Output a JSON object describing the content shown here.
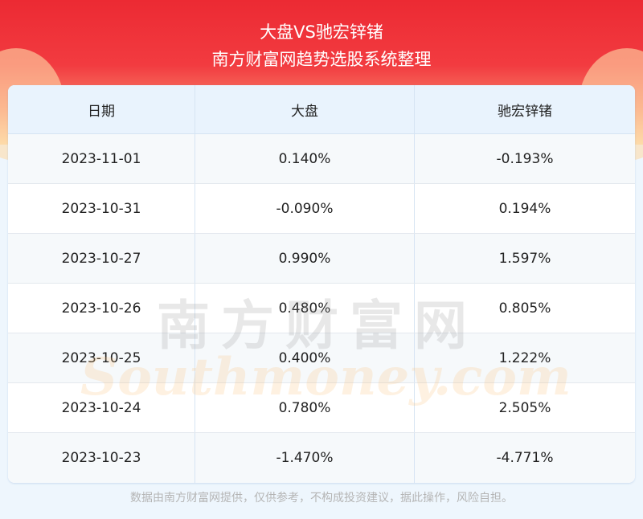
{
  "header": {
    "title": "大盘VS驰宏锌锗",
    "subtitle": "南方财富网趋势选股系统整理"
  },
  "table": {
    "columns": [
      "日期",
      "大盘",
      "驰宏锌锗"
    ],
    "rows": [
      [
        "2023-11-01",
        "0.140%",
        "-0.193%"
      ],
      [
        "2023-10-31",
        "-0.090%",
        "0.194%"
      ],
      [
        "2023-10-27",
        "0.990%",
        "1.597%"
      ],
      [
        "2023-10-26",
        "0.480%",
        "0.805%"
      ],
      [
        "2023-10-25",
        "0.400%",
        "1.222%"
      ],
      [
        "2023-10-24",
        "0.780%",
        "2.505%"
      ],
      [
        "2023-10-23",
        "-1.470%",
        "-4.771%"
      ]
    ]
  },
  "watermark": {
    "cn": "南方财富网",
    "en": "Southmoney.com"
  },
  "footer": {
    "disclaimer": "数据由南方财富网提供，仅供参考，不构成投资建议，据此操作，风险自担。"
  },
  "colors": {
    "banner": "#ec2a33",
    "header_bg": "#e9f3fd"
  }
}
